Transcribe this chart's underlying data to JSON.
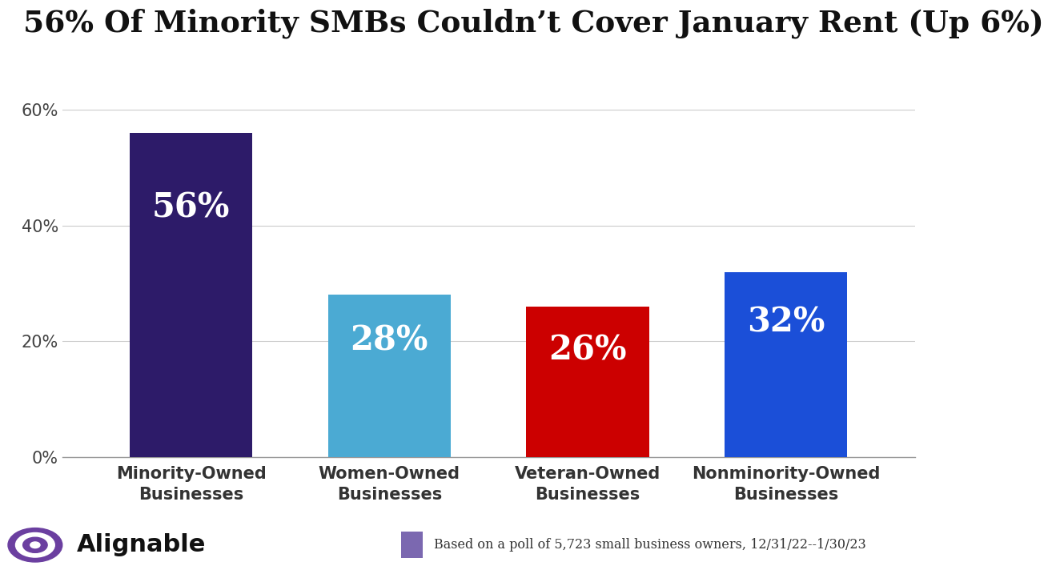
{
  "title": "56% Of Minority SMBs Couldn’t Cover January Rent (Up 6%)",
  "categories": [
    "Minority-Owned\nBusinesses",
    "Women-Owned\nBusinesses",
    "Veteran-Owned\nBusinesses",
    "Nonminority-Owned\nBusinesses"
  ],
  "values": [
    56,
    28,
    26,
    32
  ],
  "bar_colors": [
    "#2D1B69",
    "#4BAAD3",
    "#CC0000",
    "#1B4FD8"
  ],
  "label_texts": [
    "56%",
    "28%",
    "26%",
    "32%"
  ],
  "yticks": [
    0,
    20,
    40,
    60
  ],
  "ytick_labels": [
    "0%",
    "20%",
    "40%",
    "60%"
  ],
  "ylim": [
    0,
    65
  ],
  "background_color": "#FFFFFF",
  "bar_label_color": "#FFFFFF",
  "bar_label_fontsize": 30,
  "title_fontsize": 27,
  "tick_label_fontsize": 15,
  "footnote_text": "Based on a poll of 5,723 small business owners, 12/31/22--1/30/23",
  "legend_color": "#7B68B0",
  "alignable_text": "Alignable",
  "bar_width": 0.62
}
